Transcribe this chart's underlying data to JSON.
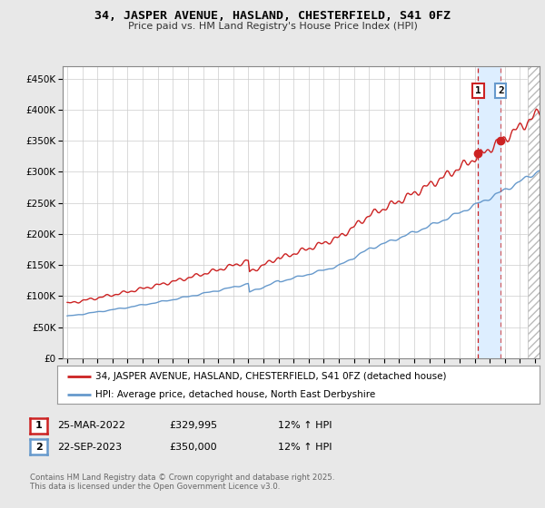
{
  "title": "34, JASPER AVENUE, HASLAND, CHESTERFIELD, S41 0FZ",
  "subtitle": "Price paid vs. HM Land Registry's House Price Index (HPI)",
  "yticks": [
    0,
    50000,
    100000,
    150000,
    200000,
    250000,
    300000,
    350000,
    400000,
    450000
  ],
  "ylim": [
    0,
    470000
  ],
  "xlim_start": 1994.7,
  "xlim_end": 2026.3,
  "bg_color": "#e8e8e8",
  "plot_bg_color": "#ffffff",
  "hpi_color": "#6699cc",
  "price_color": "#cc2222",
  "vline_color": "#cc2222",
  "highlight_color": "#ddeeff",
  "hatch_color": "#dddddd",
  "sale1_x": 2022.23,
  "sale1_y": 329995,
  "sale2_x": 2023.73,
  "sale2_y": 350000,
  "legend_label1": "34, JASPER AVENUE, HASLAND, CHESTERFIELD, S41 0FZ (detached house)",
  "legend_label2": "HPI: Average price, detached house, North East Derbyshire",
  "note1_date": "25-MAR-2022",
  "note1_price": "£329,995",
  "note1_hpi": "12% ↑ HPI",
  "note2_date": "22-SEP-2023",
  "note2_price": "£350,000",
  "note2_hpi": "12% ↑ HPI",
  "footer": "Contains HM Land Registry data © Crown copyright and database right 2025.\nThis data is licensed under the Open Government Licence v3.0."
}
